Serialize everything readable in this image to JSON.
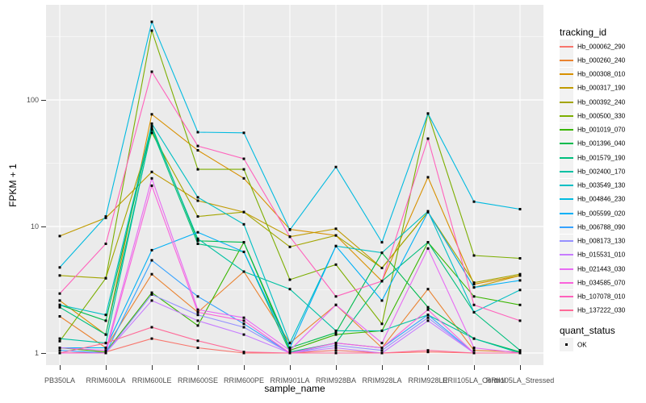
{
  "chart_data": {
    "type": "line",
    "title": "",
    "xlabel": "sample_name",
    "ylabel": "FPKM + 1",
    "y_scale": "log10",
    "y_ticks": [
      "1",
      "10",
      "100"
    ],
    "ylim": [
      0.8,
      565
    ],
    "grid": "on",
    "panel_bg": "#EBEBEB",
    "grid_color": "#FFFFFF",
    "point_color": "#000000",
    "categories": [
      "PB350LA",
      "RRIM600LA",
      "RRIM600LE",
      "RRIM600SE",
      "RRIM600PE",
      "RRIM901LA",
      "RRIM928BA",
      "RRIM928LA",
      "RRIM928LE",
      "RRII105LA_Control",
      "RRII105LA_Stressed"
    ],
    "legend": {
      "position": "right",
      "series_title": "tracking_id",
      "shape_title": "quant_status",
      "shape_label": "OK"
    },
    "series": [
      {
        "name": "Hb_000062_290",
        "color": "#F8766D",
        "values": [
          1.0,
          1.02,
          1.3,
          1.1,
          1.0,
          1.0,
          1.05,
          1.0,
          1.02,
          1.0,
          1.0
        ]
      },
      {
        "name": "Hb_000260_240",
        "color": "#EA8331",
        "values": [
          1.95,
          1.1,
          4.2,
          2.1,
          4.4,
          1.2,
          2.4,
          1.1,
          3.2,
          1.05,
          1.02
        ]
      },
      {
        "name": "Hb_000308_010",
        "color": "#D89000",
        "values": [
          2.6,
          1.4,
          77,
          40,
          24,
          9.5,
          8.5,
          3.7,
          24.5,
          3.5,
          4.1
        ]
      },
      {
        "name": "Hb_000317_190",
        "color": "#C09B00",
        "values": [
          8.4,
          11.7,
          27,
          16,
          13,
          8.3,
          9.6,
          4.7,
          13,
          3.3,
          4.1
        ]
      },
      {
        "name": "Hb_000392_240",
        "color": "#A3A500",
        "values": [
          4.1,
          3.9,
          55,
          12,
          13,
          6.9,
          8.5,
          4.7,
          13,
          3.6,
          4.2
        ]
      },
      {
        "name": "Hb_000500_330",
        "color": "#7CAE00",
        "values": [
          1.24,
          3.9,
          353,
          28.3,
          28.3,
          3.8,
          5.0,
          1.7,
          78,
          5.9,
          5.6
        ]
      },
      {
        "name": "Hb_001019_070",
        "color": "#39B600",
        "values": [
          1.1,
          1.02,
          3.0,
          1.65,
          7.5,
          1.05,
          1.4,
          1.5,
          7.5,
          2.8,
          2.4
        ]
      },
      {
        "name": "Hb_001396_040",
        "color": "#00BB4E",
        "values": [
          2.4,
          1.8,
          62,
          7.7,
          7.5,
          1.1,
          1.45,
          6.2,
          2.3,
          1.3,
          1.02
        ]
      },
      {
        "name": "Hb_001579_190",
        "color": "#00BF7D",
        "values": [
          2.3,
          1.4,
          58,
          7.3,
          6.3,
          1.02,
          1.2,
          3.7,
          7.5,
          2.1,
          1.05
        ]
      },
      {
        "name": "Hb_002400_170",
        "color": "#00C1A3",
        "values": [
          1.3,
          1.2,
          60,
          8.0,
          4.4,
          3.2,
          1.5,
          1.5,
          2.0,
          1.3,
          1.0
        ]
      },
      {
        "name": "Hb_003549_130",
        "color": "#00BFC4",
        "values": [
          2.4,
          2.0,
          65,
          17,
          10.4,
          1.2,
          7.0,
          6.2,
          13.2,
          2.1,
          3.15
        ]
      },
      {
        "name": "Hb_004846_230",
        "color": "#00BAE0",
        "values": [
          4.75,
          12,
          414,
          55.6,
          55,
          9.4,
          29.5,
          7.5,
          78,
          15.7,
          13.7
        ]
      },
      {
        "name": "Hb_005599_020",
        "color": "#00B0F6",
        "values": [
          1.1,
          1.1,
          6.5,
          9.0,
          6.3,
          1.1,
          7.0,
          2.6,
          13,
          3.3,
          3.75
        ]
      },
      {
        "name": "Hb_006788_090",
        "color": "#35A2FF",
        "values": [
          1.05,
          1.0,
          5.4,
          2.8,
          1.7,
          1.0,
          1.2,
          1.1,
          2.0,
          1.0,
          1.0
        ]
      },
      {
        "name": "Hb_008173_130",
        "color": "#9590FF",
        "values": [
          1.0,
          1.0,
          2.9,
          2.0,
          1.6,
          1.0,
          1.15,
          1.05,
          1.9,
          1.0,
          1.0
        ]
      },
      {
        "name": "Hb_015531_010",
        "color": "#C77CFF",
        "values": [
          1.0,
          1.0,
          2.6,
          1.8,
          1.4,
          1.0,
          1.1,
          1.0,
          1.8,
          1.0,
          1.0
        ]
      },
      {
        "name": "Hb_021443_030",
        "color": "#E76BF3",
        "values": [
          1.1,
          1.05,
          24,
          2.2,
          1.9,
          1.05,
          2.4,
          1.2,
          6.7,
          1.1,
          1.0
        ]
      },
      {
        "name": "Hb_034585_070",
        "color": "#FA62DB",
        "values": [
          1.0,
          1.0,
          21,
          2.1,
          1.8,
          1.0,
          1.2,
          1.1,
          2.2,
          1.0,
          1.0
        ]
      },
      {
        "name": "Hb_107078_010",
        "color": "#FF62BC",
        "values": [
          2.95,
          7.3,
          167,
          43.3,
          34.3,
          8.3,
          2.8,
          3.7,
          49.5,
          2.4,
          1.8
        ]
      },
      {
        "name": "Hb_137222_030",
        "color": "#FF6A98",
        "values": [
          1.0,
          1.2,
          1.6,
          1.25,
          1.02,
          1.0,
          1.0,
          1.0,
          1.05,
          1.0,
          1.0
        ]
      }
    ]
  }
}
